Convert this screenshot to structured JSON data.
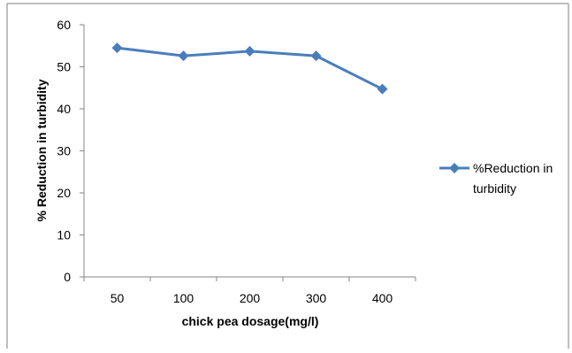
{
  "chart_data": {
    "type": "line",
    "categories": [
      "50",
      "100",
      "200",
      "300",
      "400"
    ],
    "series": [
      {
        "name": "%Reduction in turbidity",
        "values": [
          54.5,
          52.6,
          53.7,
          52.6,
          44.7
        ],
        "color": "#4a7ebb",
        "marker": "diamond"
      }
    ],
    "xlabel": "chick pea dosage(mg/l)",
    "ylabel": "% Reduction in turbidity",
    "ylim": [
      0,
      60
    ],
    "yticks": [
      "0",
      "10",
      "20",
      "30",
      "40",
      "50",
      "60"
    ],
    "grid": false,
    "legend_position": "right"
  },
  "legend": {
    "line1": "%Reduction in",
    "line2": "turbidity"
  }
}
